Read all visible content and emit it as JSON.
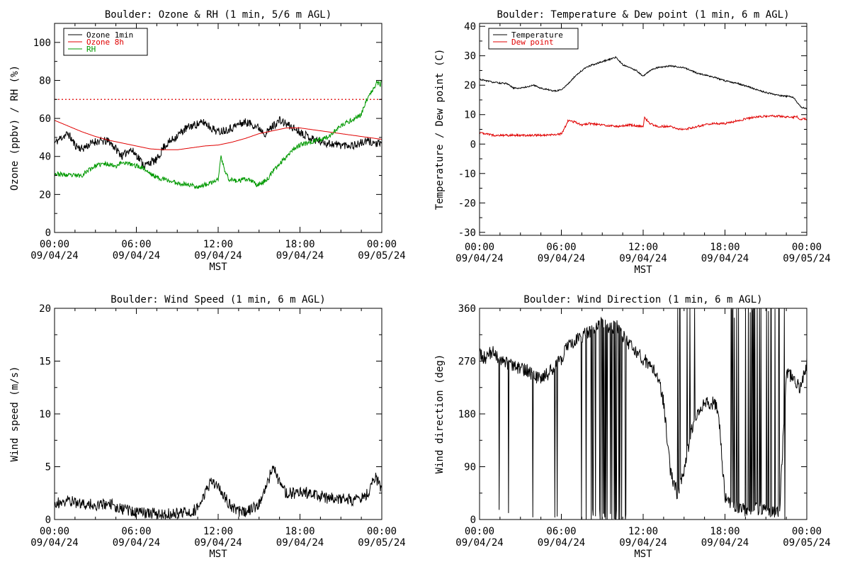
{
  "colors": {
    "black": "#000000",
    "red": "#e00000",
    "green": "#009900"
  },
  "time_axis": {
    "ticks": [
      0,
      6,
      12,
      18,
      24
    ],
    "time_labels": [
      "00:00",
      "06:00",
      "12:00",
      "18:00",
      "00:00"
    ],
    "date_labels": [
      "09/04/24",
      "09/04/24",
      "09/04/24",
      "09/04/24",
      "09/05/24"
    ],
    "label": "MST"
  },
  "chart_data": [
    {
      "type": "line",
      "title": "Boulder: Ozone & RH (1 min, 5/6 m AGL)",
      "xlabel": "MST",
      "ylabel": "Ozone (ppbv) / RH (%)",
      "xlim": [
        0,
        24
      ],
      "ylim": [
        0,
        110
      ],
      "yticks": [
        0,
        20,
        40,
        60,
        80,
        100
      ],
      "yminor": 10,
      "legend": "top-left",
      "reference_line": {
        "y": 70,
        "color": "red",
        "style": "dotted"
      },
      "series": [
        {
          "name": "Ozone 1min",
          "color": "black",
          "noise": 2.2,
          "seed": 11,
          "x": [
            0,
            0.5,
            1,
            1.5,
            2,
            3,
            4,
            4.5,
            5,
            5.5,
            6,
            6.3,
            6.6,
            7,
            7.5,
            8,
            8.5,
            9,
            9.5,
            10,
            10.5,
            11,
            11.5,
            12,
            12.5,
            13,
            13.5,
            14,
            14.5,
            15,
            15.5,
            16,
            16.5,
            17,
            17.5,
            18,
            18.5,
            19,
            19.5,
            20,
            21,
            22,
            22.5,
            23,
            23.5,
            24
          ],
          "y": [
            47,
            50,
            52,
            46,
            44,
            48,
            48,
            44,
            40,
            44,
            41,
            38,
            35,
            37,
            38,
            45,
            48,
            51,
            54,
            56,
            57,
            58,
            55,
            53,
            54,
            55,
            57,
            58,
            57,
            55,
            52,
            56,
            59,
            57,
            55,
            53,
            51,
            49,
            48,
            47,
            46,
            46,
            47,
            48,
            47,
            46
          ]
        },
        {
          "name": "Ozone 8h",
          "color": "red",
          "noise": 0,
          "seed": 0,
          "x": [
            0,
            1,
            2,
            3,
            4,
            5,
            6,
            7,
            8,
            9,
            10,
            11,
            12,
            13,
            14,
            15,
            16,
            17,
            18,
            19,
            20,
            21,
            22,
            23,
            24
          ],
          "y": [
            59,
            56,
            53,
            50.5,
            48.5,
            47,
            45.5,
            44,
            43.5,
            43.5,
            44.5,
            45.5,
            46,
            47.5,
            49.5,
            52,
            53.5,
            55,
            55,
            54,
            53,
            52,
            51,
            50,
            49
          ]
        },
        {
          "name": "RH",
          "color": "green",
          "noise": 1.2,
          "seed": 23,
          "x": [
            0,
            1,
            2,
            2.5,
            3,
            3.5,
            4,
            4.5,
            5,
            5.5,
            6,
            6.5,
            7,
            7.5,
            8,
            9,
            10,
            10.5,
            11,
            11.5,
            12,
            12.2,
            12.5,
            12.8,
            13.5,
            14,
            14.5,
            14.8,
            15.2,
            15.6,
            16,
            16.5,
            17,
            17.5,
            18,
            19,
            20,
            21,
            22,
            22.5,
            22.9,
            23.3,
            23.6,
            23.9,
            24
          ],
          "y": [
            31,
            30,
            30,
            33,
            35,
            36,
            36,
            35,
            37,
            36,
            35,
            34,
            31,
            29,
            28,
            26,
            25,
            24,
            25,
            26,
            28,
            40,
            32,
            28,
            27,
            28,
            27,
            25,
            26,
            28,
            32,
            36,
            40,
            44,
            46,
            48,
            50,
            56,
            60,
            62,
            70,
            74,
            79,
            78,
            79
          ]
        }
      ]
    },
    {
      "type": "line",
      "title": "Boulder: Temperature & Dew point (1 min, 6 m AGL)",
      "xlabel": "MST",
      "ylabel": "Temperature / Dew point (C)",
      "xlim": [
        0,
        24
      ],
      "ylim": [
        -31,
        41
      ],
      "yticks": [
        -30,
        -20,
        -10,
        0,
        10,
        20,
        30,
        40
      ],
      "yminor": 5,
      "legend": "top-left",
      "series": [
        {
          "name": "Temperature",
          "color": "black",
          "noise": 0.25,
          "seed": 31,
          "x": [
            0,
            1,
            2,
            2.5,
            3,
            4,
            4.5,
            5,
            5.5,
            6,
            6.5,
            7,
            7.5,
            8,
            9,
            10,
            10.5,
            11,
            11.5,
            12,
            12.5,
            13,
            14,
            15,
            16,
            17,
            18,
            19,
            20,
            21,
            22,
            23,
            23.3,
            23.6,
            24
          ],
          "y": [
            22,
            21,
            20.5,
            19,
            19,
            20,
            19,
            18.5,
            18,
            18.5,
            20.5,
            23,
            25,
            26.5,
            28,
            29.5,
            27,
            26,
            25,
            23,
            25,
            26,
            26.5,
            26,
            24,
            23,
            21.5,
            20.5,
            19,
            17.5,
            16.5,
            16,
            14,
            12.5,
            12
          ]
        },
        {
          "name": "Dew point",
          "color": "red",
          "noise": 0.35,
          "seed": 47,
          "x": [
            0,
            0.5,
            1,
            2,
            3,
            4,
            5,
            6,
            6.2,
            6.5,
            7,
            7.5,
            8,
            9,
            10,
            11,
            12,
            12.1,
            12.5,
            13,
            14,
            14.6,
            15,
            16,
            17,
            18,
            19,
            20,
            21,
            22,
            23,
            23.2,
            23.5,
            24
          ],
          "y": [
            4,
            3.5,
            3,
            3,
            3,
            3,
            3,
            3.5,
            5,
            8,
            7.5,
            6.5,
            7,
            6.5,
            6,
            6.5,
            6,
            9,
            7,
            6,
            6,
            5,
            5,
            6,
            7,
            7,
            8,
            9,
            9.5,
            9.5,
            9,
            9.5,
            8.5,
            8.5
          ]
        }
      ]
    },
    {
      "type": "line",
      "title": "Boulder: Wind Speed (1 min, 6 m AGL)",
      "xlabel": "MST",
      "ylabel": "Wind speed (m/s)",
      "xlim": [
        0,
        24
      ],
      "ylim": [
        0,
        20
      ],
      "yticks": [
        0,
        5,
        10,
        15,
        20
      ],
      "yminor": 2.5,
      "series": [
        {
          "name": "",
          "color": "black",
          "noise": 0.55,
          "seed": 59,
          "x": [
            0,
            1,
            2,
            3,
            4,
            5,
            6,
            7,
            8,
            9,
            10,
            10.5,
            11,
            11.5,
            12,
            12.5,
            13,
            14,
            15,
            15.5,
            16,
            16.5,
            17,
            18,
            19,
            20,
            21,
            22,
            23,
            23.5,
            24
          ],
          "y": [
            1.5,
            1.8,
            1.5,
            1.4,
            1.5,
            1.0,
            0.7,
            0.6,
            0.5,
            0.6,
            0.8,
            1.0,
            2.5,
            3.5,
            3.0,
            2.2,
            1.0,
            0.6,
            1.5,
            3.0,
            5.0,
            3.5,
            2.5,
            2.5,
            2.5,
            2.0,
            2.0,
            1.8,
            2.5,
            4.0,
            3.0
          ]
        }
      ]
    },
    {
      "type": "scatter",
      "title": "Boulder: Wind Direction (1 min, 6 m AGL)",
      "xlabel": "MST",
      "ylabel": "Wind direction (deg)",
      "xlim": [
        0,
        24
      ],
      "ylim": [
        0,
        360
      ],
      "yticks": [
        0,
        90,
        180,
        270,
        360
      ],
      "yminor": 45,
      "series": [
        {
          "name": "",
          "color": "black",
          "noise": 12,
          "seed": 73,
          "wrap_from": [
            7.4,
            14.6,
            18.0
          ],
          "x": [
            0,
            0.5,
            1,
            1.5,
            2,
            2.5,
            3,
            3.5,
            4,
            4.5,
            5,
            5.5,
            6,
            6.5,
            7,
            7.5,
            8,
            8.5,
            9,
            9.5,
            10,
            10.5,
            11,
            11.5,
            12,
            12.5,
            13,
            13.5,
            14,
            14.5,
            15,
            15.5,
            16,
            16.5,
            17,
            17.5,
            18,
            18.5,
            19,
            19.5,
            20,
            20.5,
            21,
            21.5,
            22,
            22.5,
            23,
            23.5,
            24
          ],
          "y": [
            280,
            275,
            290,
            270,
            265,
            262,
            258,
            255,
            245,
            238,
            248,
            258,
            275,
            295,
            302,
            312,
            320,
            325,
            335,
            325,
            330,
            315,
            300,
            285,
            272,
            265,
            250,
            200,
            80,
            45,
            80,
            150,
            185,
            195,
            200,
            190,
            35,
            25,
            20,
            15,
            15,
            20,
            18,
            15,
            12,
            250,
            240,
            225,
            265
          ]
        }
      ]
    }
  ]
}
